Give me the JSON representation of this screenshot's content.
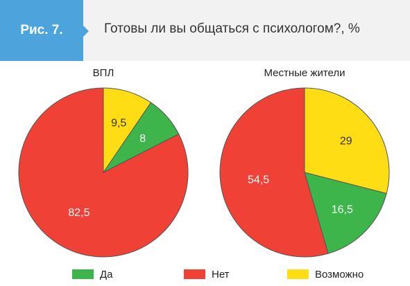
{
  "header": {
    "figure_label": "Рис. 7.",
    "title": "Готовы ли вы общаться с психологом?, %"
  },
  "colors": {
    "badge": "#4da3dc",
    "header_bg": "#f2f2f2",
    "yes": "#3db54a",
    "no": "#ef4136",
    "maybe": "#ffdd15"
  },
  "legend": {
    "items": [
      {
        "label": "Да",
        "color": "#3db54a"
      },
      {
        "label": "Нет",
        "color": "#ef4136"
      },
      {
        "label": "Возможно",
        "color": "#ffdd15"
      }
    ]
  },
  "chart_data": [
    {
      "type": "pie",
      "title": "ВПЛ",
      "categories": [
        "Да",
        "Нет",
        "Возможно"
      ],
      "values": [
        8,
        82.5,
        9.5
      ],
      "labels": [
        "8",
        "82,5",
        "9,5"
      ],
      "colors": [
        "#3db54a",
        "#ef4136",
        "#ffdd15"
      ]
    },
    {
      "type": "pie",
      "title": "Местные жители",
      "categories": [
        "Да",
        "Нет",
        "Возможно"
      ],
      "values": [
        16.5,
        54.5,
        29
      ],
      "labels": [
        "16,5",
        "54,5",
        "29"
      ],
      "colors": [
        "#3db54a",
        "#ef4136",
        "#ffdd15"
      ]
    }
  ]
}
